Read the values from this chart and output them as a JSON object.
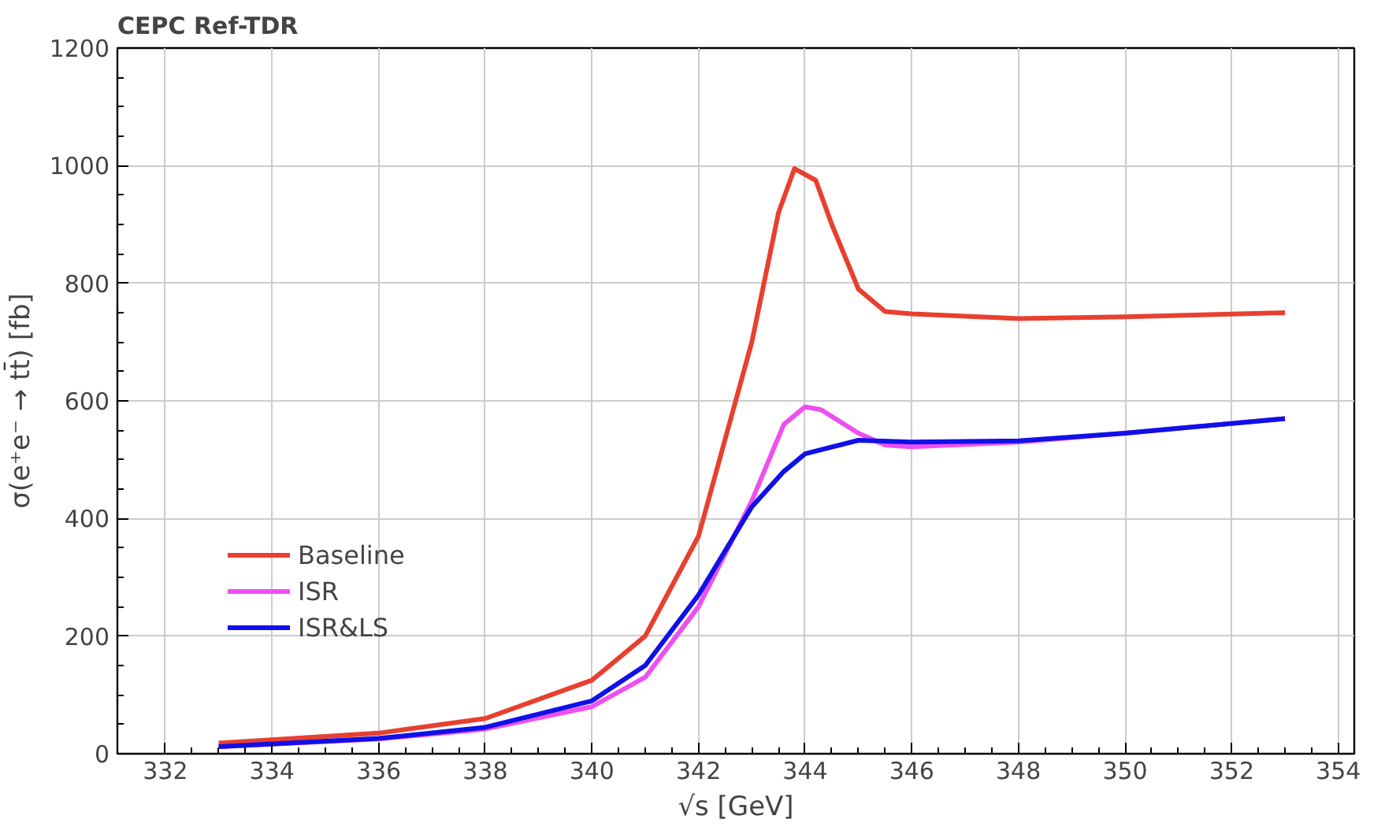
{
  "chart_data": {
    "type": "line",
    "title": "CEPC Ref-TDR",
    "xlabel": "√s [GeV]",
    "ylabel": "σ(e⁺e⁻ → tt̄) [fb]",
    "xlim": [
      331.1,
      354.3
    ],
    "ylim": [
      0,
      1200
    ],
    "xticks": [
      332,
      334,
      336,
      338,
      340,
      342,
      344,
      346,
      348,
      350,
      352,
      354
    ],
    "yticks": [
      0,
      200,
      400,
      600,
      800,
      1000,
      1200
    ],
    "grid": true,
    "legend": "bottom left",
    "line_style": "solid",
    "marker": "none",
    "series": [
      {
        "name": "Baseline",
        "color": "#e8402f",
        "x": [
          333,
          336,
          338,
          340,
          341,
          342,
          343,
          343.5,
          343.8,
          344.2,
          344.5,
          345,
          345.5,
          346,
          348,
          350,
          353
        ],
        "values": [
          18,
          35,
          60,
          125,
          200,
          370,
          700,
          920,
          995,
          975,
          900,
          790,
          752,
          748,
          740,
          743,
          750
        ]
      },
      {
        "name": "ISR",
        "color": "#ee4ff0",
        "x": [
          333,
          336,
          338,
          340,
          341,
          342,
          343,
          343.6,
          344,
          344.3,
          345,
          345.5,
          346,
          348,
          350,
          353
        ],
        "values": [
          12,
          25,
          42,
          80,
          130,
          250,
          430,
          560,
          590,
          585,
          545,
          525,
          522,
          530,
          545,
          570
        ]
      },
      {
        "name": "ISR&LS",
        "color": "#1010e8",
        "x": [
          333,
          336,
          338,
          340,
          341,
          342,
          343,
          343.6,
          344,
          345,
          346,
          348,
          350,
          353
        ],
        "values": [
          12,
          26,
          45,
          90,
          150,
          270,
          420,
          480,
          510,
          533,
          530,
          532,
          545,
          570
        ]
      }
    ]
  }
}
